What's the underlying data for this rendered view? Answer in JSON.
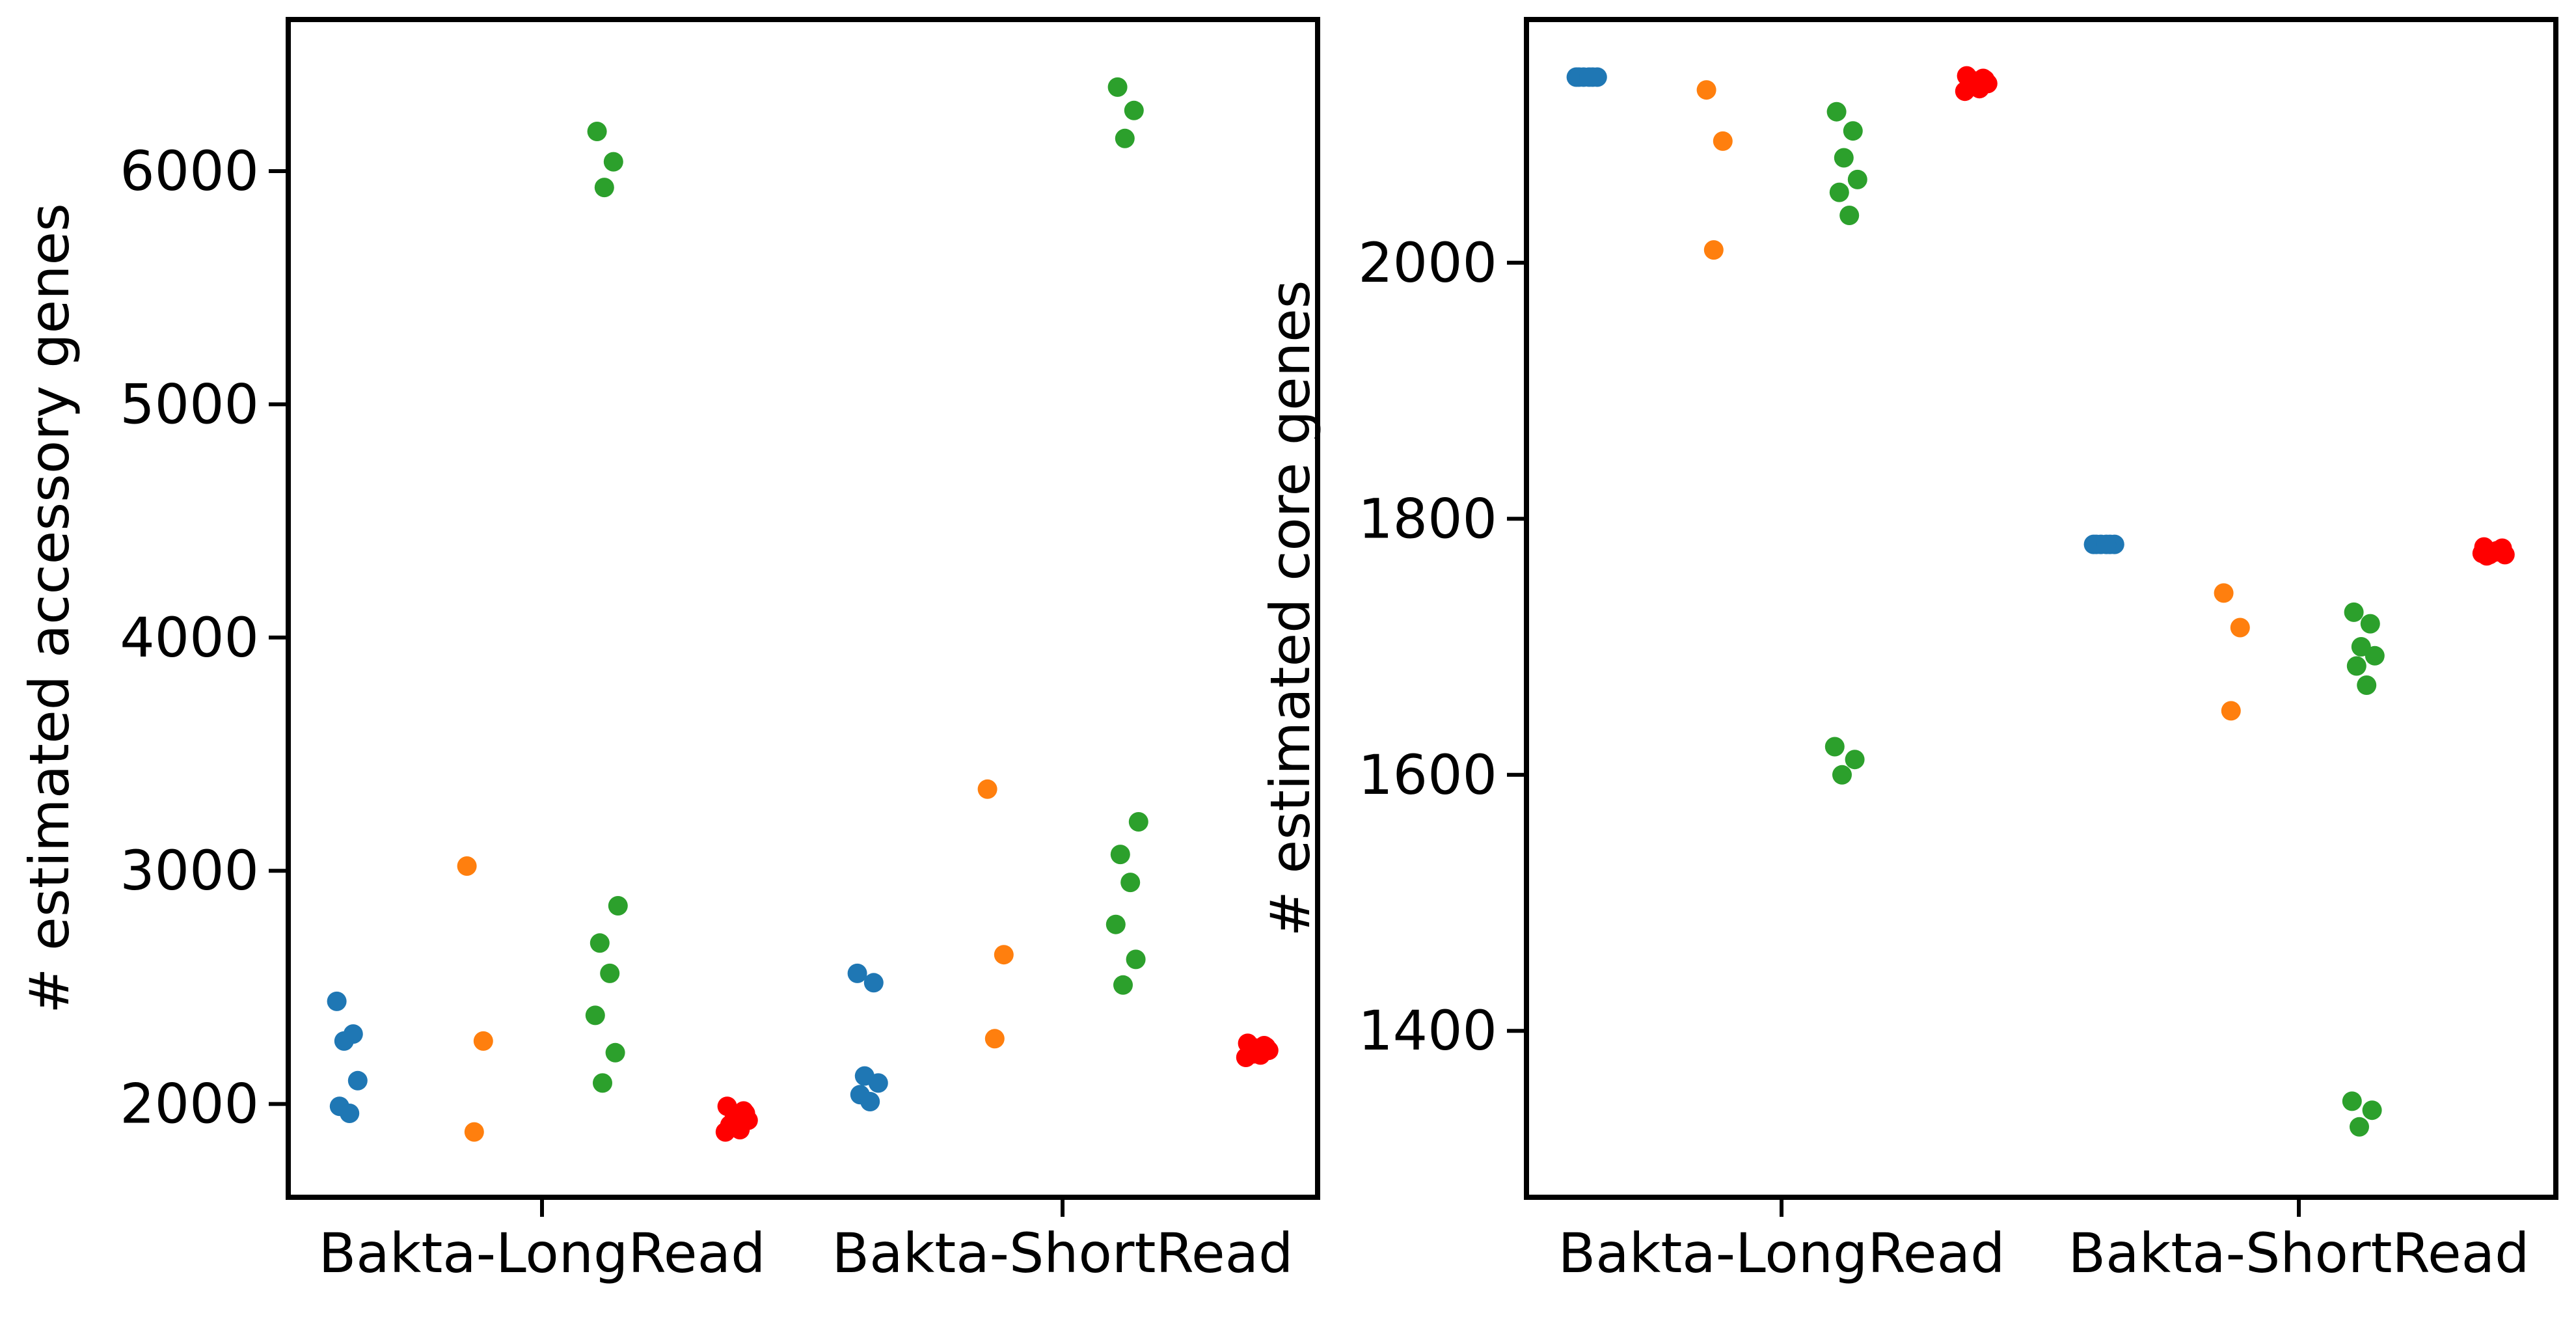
{
  "figure": {
    "background": "#ffffff",
    "colors": {
      "blue": "#1f77b4",
      "orange": "#ff7f0e",
      "green": "#2ca02c",
      "red": "#ff0000"
    }
  },
  "chart_data": [
    {
      "type": "scatter",
      "title": "",
      "xlabel": "",
      "ylabel": "# estimated accessory genes",
      "categories": [
        "Bakta-LongRead",
        "Bakta-ShortRead"
      ],
      "ylim": [
        1600,
        6650
      ],
      "yticks": [
        2000,
        3000,
        4000,
        5000,
        6000
      ],
      "grid": false,
      "series": [
        {
          "color": "#1f77b4",
          "points": [
            {
              "cat": 0,
              "y": 2440
            },
            {
              "cat": 0,
              "y": 2300
            },
            {
              "cat": 0,
              "y": 2270
            },
            {
              "cat": 0,
              "y": 2100
            },
            {
              "cat": 0,
              "y": 1990
            },
            {
              "cat": 0,
              "y": 1960
            },
            {
              "cat": 1,
              "y": 2560
            },
            {
              "cat": 1,
              "y": 2520
            },
            {
              "cat": 1,
              "y": 2120
            },
            {
              "cat": 1,
              "y": 2090
            },
            {
              "cat": 1,
              "y": 2040
            },
            {
              "cat": 1,
              "y": 2010
            }
          ]
        },
        {
          "color": "#ff7f0e",
          "points": [
            {
              "cat": 0,
              "y": 3020
            },
            {
              "cat": 0,
              "y": 2270
            },
            {
              "cat": 0,
              "y": 1880
            },
            {
              "cat": 1,
              "y": 3350
            },
            {
              "cat": 1,
              "y": 2640
            },
            {
              "cat": 1,
              "y": 2280
            }
          ]
        },
        {
          "color": "#2ca02c",
          "points": [
            {
              "cat": 0,
              "y": 6170
            },
            {
              "cat": 0,
              "y": 6040
            },
            {
              "cat": 0,
              "y": 5930
            },
            {
              "cat": 0,
              "y": 2850
            },
            {
              "cat": 0,
              "y": 2690
            },
            {
              "cat": 0,
              "y": 2560
            },
            {
              "cat": 0,
              "y": 2380
            },
            {
              "cat": 0,
              "y": 2220
            },
            {
              "cat": 0,
              "y": 2090
            },
            {
              "cat": 1,
              "y": 6360
            },
            {
              "cat": 1,
              "y": 6260
            },
            {
              "cat": 1,
              "y": 6140
            },
            {
              "cat": 1,
              "y": 3210
            },
            {
              "cat": 1,
              "y": 3070
            },
            {
              "cat": 1,
              "y": 2950
            },
            {
              "cat": 1,
              "y": 2770
            },
            {
              "cat": 1,
              "y": 2620
            },
            {
              "cat": 1,
              "y": 2510
            }
          ]
        },
        {
          "color": "#ff0000",
          "points": [
            {
              "cat": 0,
              "y": 1990
            },
            {
              "cat": 0,
              "y": 1970
            },
            {
              "cat": 0,
              "y": 1950
            },
            {
              "cat": 0,
              "y": 1930
            },
            {
              "cat": 0,
              "y": 1910
            },
            {
              "cat": 0,
              "y": 1890
            },
            {
              "cat": 0,
              "y": 1880
            },
            {
              "cat": 0,
              "y": 1960
            },
            {
              "cat": 0,
              "y": 1920
            },
            {
              "cat": 0,
              "y": 1900
            },
            {
              "cat": 1,
              "y": 2260
            },
            {
              "cat": 1,
              "y": 2250
            },
            {
              "cat": 1,
              "y": 2240
            },
            {
              "cat": 1,
              "y": 2230
            },
            {
              "cat": 1,
              "y": 2220
            },
            {
              "cat": 1,
              "y": 2210
            },
            {
              "cat": 1,
              "y": 2200
            },
            {
              "cat": 1,
              "y": 2245
            },
            {
              "cat": 1,
              "y": 2215
            },
            {
              "cat": 1,
              "y": 2225
            }
          ]
        }
      ]
    },
    {
      "type": "scatter",
      "title": "",
      "xlabel": "",
      "ylabel": "# estimated core genes",
      "categories": [
        "Bakta-LongRead",
        "Bakta-ShortRead"
      ],
      "ylim": [
        1270,
        2190
      ],
      "yticks": [
        1400,
        1600,
        1800,
        2000
      ],
      "grid": false,
      "series": [
        {
          "color": "#1f77b4",
          "points": [
            {
              "cat": 0,
              "y": 2145
            },
            {
              "cat": 0,
              "y": 2145
            },
            {
              "cat": 0,
              "y": 2145
            },
            {
              "cat": 0,
              "y": 2145
            },
            {
              "cat": 0,
              "y": 2145
            },
            {
              "cat": 0,
              "y": 2145
            },
            {
              "cat": 1,
              "y": 1780
            },
            {
              "cat": 1,
              "y": 1780
            },
            {
              "cat": 1,
              "y": 1780
            },
            {
              "cat": 1,
              "y": 1780
            },
            {
              "cat": 1,
              "y": 1780
            },
            {
              "cat": 1,
              "y": 1780
            }
          ]
        },
        {
          "color": "#ff7f0e",
          "points": [
            {
              "cat": 0,
              "y": 2135
            },
            {
              "cat": 0,
              "y": 2095
            },
            {
              "cat": 0,
              "y": 2010
            },
            {
              "cat": 1,
              "y": 1742
            },
            {
              "cat": 1,
              "y": 1715
            },
            {
              "cat": 1,
              "y": 1650
            }
          ]
        },
        {
          "color": "#2ca02c",
          "points": [
            {
              "cat": 0,
              "y": 2118
            },
            {
              "cat": 0,
              "y": 2103
            },
            {
              "cat": 0,
              "y": 2082
            },
            {
              "cat": 0,
              "y": 2065
            },
            {
              "cat": 0,
              "y": 2055
            },
            {
              "cat": 0,
              "y": 2037
            },
            {
              "cat": 0,
              "y": 1622
            },
            {
              "cat": 0,
              "y": 1612
            },
            {
              "cat": 0,
              "y": 1600
            },
            {
              "cat": 1,
              "y": 1727
            },
            {
              "cat": 1,
              "y": 1718
            },
            {
              "cat": 1,
              "y": 1700
            },
            {
              "cat": 1,
              "y": 1693
            },
            {
              "cat": 1,
              "y": 1685
            },
            {
              "cat": 1,
              "y": 1670
            },
            {
              "cat": 1,
              "y": 1345
            },
            {
              "cat": 1,
              "y": 1338
            },
            {
              "cat": 1,
              "y": 1325
            }
          ]
        },
        {
          "color": "#ff0000",
          "points": [
            {
              "cat": 0,
              "y": 2146
            },
            {
              "cat": 0,
              "y": 2144
            },
            {
              "cat": 0,
              "y": 2142
            },
            {
              "cat": 0,
              "y": 2140
            },
            {
              "cat": 0,
              "y": 2138
            },
            {
              "cat": 0,
              "y": 2136
            },
            {
              "cat": 0,
              "y": 2134
            },
            {
              "cat": 0,
              "y": 2143
            },
            {
              "cat": 0,
              "y": 2139
            },
            {
              "cat": 0,
              "y": 2137
            },
            {
              "cat": 1,
              "y": 1778
            },
            {
              "cat": 1,
              "y": 1776
            },
            {
              "cat": 1,
              "y": 1774
            },
            {
              "cat": 1,
              "y": 1772
            },
            {
              "cat": 1,
              "y": 1771
            },
            {
              "cat": 1,
              "y": 1775
            },
            {
              "cat": 1,
              "y": 1773
            },
            {
              "cat": 1,
              "y": 1777
            },
            {
              "cat": 1,
              "y": 1772
            },
            {
              "cat": 1,
              "y": 1774
            }
          ]
        }
      ]
    }
  ]
}
